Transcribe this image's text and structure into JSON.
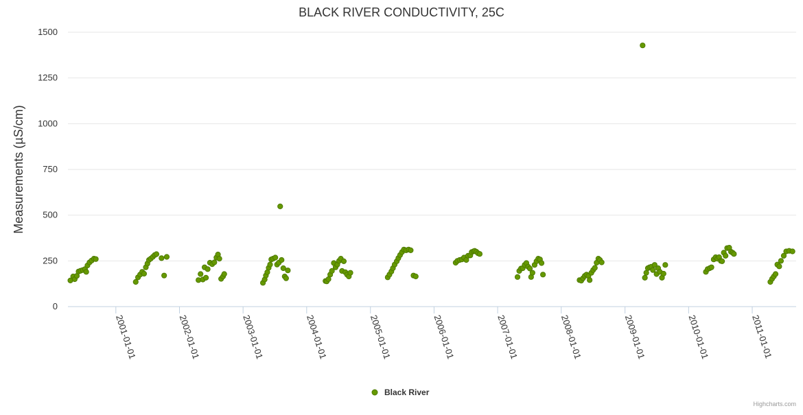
{
  "chart_data": {
    "type": "scatter",
    "title": "BLACK RIVER CONDUCTIVITY, 25C",
    "ylabel": "Measurements (µS/cm)",
    "xlabel": "",
    "ylim": [
      0,
      1500
    ],
    "yticks": [
      0,
      250,
      500,
      750,
      1000,
      1250,
      1500
    ],
    "xlim": [
      "2000-04-01",
      "2011-09-10"
    ],
    "xticks": [
      "2001-01-01",
      "2002-01-01",
      "2003-01-01",
      "2004-01-01",
      "2005-01-01",
      "2006-01-01",
      "2007-01-01",
      "2008-01-01",
      "2009-01-01",
      "2010-01-01",
      "2011-01-01"
    ],
    "grid": "horizontal",
    "legend_position": "bottom-center",
    "marker_color": "#669900",
    "marker_outline": "#4d7a00",
    "credits": "Highcharts.com",
    "series": [
      {
        "name": "Black River",
        "points": [
          [
            "2000-04-15",
            143
          ],
          [
            "2000-05-01",
            165
          ],
          [
            "2000-05-10",
            150
          ],
          [
            "2000-05-22",
            168
          ],
          [
            "2000-06-01",
            192
          ],
          [
            "2000-06-12",
            196
          ],
          [
            "2000-06-25",
            200
          ],
          [
            "2000-07-08",
            205
          ],
          [
            "2000-07-15",
            190
          ],
          [
            "2000-07-22",
            225
          ],
          [
            "2000-08-03",
            242
          ],
          [
            "2000-08-15",
            252
          ],
          [
            "2000-08-28",
            262
          ],
          [
            "2000-09-08",
            260
          ],
          [
            "2001-04-25",
            135
          ],
          [
            "2001-05-08",
            160
          ],
          [
            "2001-05-20",
            175
          ],
          [
            "2001-06-01",
            190
          ],
          [
            "2001-06-12",
            180
          ],
          [
            "2001-06-22",
            215
          ],
          [
            "2001-07-01",
            235
          ],
          [
            "2001-07-10",
            255
          ],
          [
            "2001-07-20",
            262
          ],
          [
            "2001-08-01",
            272
          ],
          [
            "2001-08-12",
            282
          ],
          [
            "2001-08-22",
            287
          ],
          [
            "2001-09-20",
            265
          ],
          [
            "2001-10-05",
            170
          ],
          [
            "2001-10-20",
            272
          ],
          [
            "2002-04-20",
            145
          ],
          [
            "2002-05-02",
            178
          ],
          [
            "2002-05-15",
            148
          ],
          [
            "2002-05-25",
            215
          ],
          [
            "2002-06-02",
            158
          ],
          [
            "2002-06-12",
            205
          ],
          [
            "2002-06-25",
            240
          ],
          [
            "2002-07-08",
            232
          ],
          [
            "2002-07-20",
            242
          ],
          [
            "2002-08-01",
            268
          ],
          [
            "2002-08-10",
            285
          ],
          [
            "2002-08-18",
            262
          ],
          [
            "2002-08-28",
            152
          ],
          [
            "2002-09-08",
            165
          ],
          [
            "2002-09-15",
            178
          ],
          [
            "2003-04-25",
            130
          ],
          [
            "2003-05-05",
            148
          ],
          [
            "2003-05-12",
            170
          ],
          [
            "2003-05-20",
            188
          ],
          [
            "2003-05-28",
            212
          ],
          [
            "2003-06-05",
            230
          ],
          [
            "2003-06-12",
            258
          ],
          [
            "2003-06-22",
            262
          ],
          [
            "2003-07-05",
            268
          ],
          [
            "2003-07-15",
            230
          ],
          [
            "2003-07-25",
            240
          ],
          [
            "2003-08-02",
            548
          ],
          [
            "2003-08-10",
            255
          ],
          [
            "2003-08-20",
            210
          ],
          [
            "2003-08-28",
            165
          ],
          [
            "2003-09-05",
            155
          ],
          [
            "2003-09-15",
            198
          ],
          [
            "2004-04-18",
            140
          ],
          [
            "2004-04-25",
            138
          ],
          [
            "2004-05-05",
            150
          ],
          [
            "2004-05-15",
            175
          ],
          [
            "2004-05-25",
            195
          ],
          [
            "2004-06-05",
            238
          ],
          [
            "2004-06-15",
            215
          ],
          [
            "2004-06-25",
            230
          ],
          [
            "2004-07-05",
            250
          ],
          [
            "2004-07-15",
            262
          ],
          [
            "2004-07-22",
            195
          ],
          [
            "2004-08-01",
            248
          ],
          [
            "2004-08-10",
            188
          ],
          [
            "2004-08-20",
            175
          ],
          [
            "2004-08-30",
            165
          ],
          [
            "2004-09-08",
            185
          ],
          [
            "2005-04-10",
            160
          ],
          [
            "2005-04-20",
            175
          ],
          [
            "2005-05-01",
            192
          ],
          [
            "2005-05-10",
            210
          ],
          [
            "2005-05-20",
            230
          ],
          [
            "2005-06-01",
            248
          ],
          [
            "2005-06-10",
            265
          ],
          [
            "2005-06-20",
            282
          ],
          [
            "2005-07-01",
            298
          ],
          [
            "2005-07-12",
            312
          ],
          [
            "2005-07-25",
            308
          ],
          [
            "2005-08-08",
            312
          ],
          [
            "2005-08-20",
            308
          ],
          [
            "2005-09-05",
            170
          ],
          [
            "2005-09-18",
            165
          ],
          [
            "2006-05-05",
            240
          ],
          [
            "2006-05-15",
            250
          ],
          [
            "2006-05-28",
            255
          ],
          [
            "2006-06-10",
            258
          ],
          [
            "2006-06-22",
            268
          ],
          [
            "2006-07-05",
            255
          ],
          [
            "2006-07-15",
            278
          ],
          [
            "2006-07-28",
            280
          ],
          [
            "2006-08-05",
            298
          ],
          [
            "2006-08-15",
            302
          ],
          [
            "2006-08-22",
            305
          ],
          [
            "2006-09-01",
            300
          ],
          [
            "2006-09-10",
            292
          ],
          [
            "2006-09-20",
            288
          ],
          [
            "2007-04-25",
            162
          ],
          [
            "2007-05-05",
            195
          ],
          [
            "2007-05-15",
            208
          ],
          [
            "2007-05-25",
            210
          ],
          [
            "2007-06-05",
            228
          ],
          [
            "2007-06-15",
            238
          ],
          [
            "2007-06-25",
            218
          ],
          [
            "2007-07-05",
            208
          ],
          [
            "2007-07-12",
            162
          ],
          [
            "2007-07-20",
            185
          ],
          [
            "2007-08-01",
            228
          ],
          [
            "2007-08-12",
            248
          ],
          [
            "2007-08-22",
            262
          ],
          [
            "2007-09-01",
            258
          ],
          [
            "2007-09-10",
            238
          ],
          [
            "2007-09-18",
            175
          ],
          [
            "2008-04-15",
            145
          ],
          [
            "2008-04-25",
            142
          ],
          [
            "2008-05-05",
            155
          ],
          [
            "2008-05-15",
            168
          ],
          [
            "2008-05-25",
            175
          ],
          [
            "2008-06-05",
            168
          ],
          [
            "2008-06-12",
            145
          ],
          [
            "2008-06-22",
            185
          ],
          [
            "2008-07-02",
            200
          ],
          [
            "2008-07-12",
            212
          ],
          [
            "2008-07-22",
            240
          ],
          [
            "2008-08-01",
            262
          ],
          [
            "2008-08-10",
            255
          ],
          [
            "2008-08-20",
            242
          ],
          [
            "2009-04-12",
            1428
          ],
          [
            "2009-04-25",
            158
          ],
          [
            "2009-05-03",
            185
          ],
          [
            "2009-05-12",
            210
          ],
          [
            "2009-05-22",
            215
          ],
          [
            "2009-06-01",
            218
          ],
          [
            "2009-06-10",
            200
          ],
          [
            "2009-06-20",
            228
          ],
          [
            "2009-07-01",
            178
          ],
          [
            "2009-07-10",
            210
          ],
          [
            "2009-07-20",
            190
          ],
          [
            "2009-08-01",
            158
          ],
          [
            "2009-08-10",
            180
          ],
          [
            "2009-08-20",
            228
          ],
          [
            "2010-04-10",
            190
          ],
          [
            "2010-04-20",
            205
          ],
          [
            "2010-05-02",
            210
          ],
          [
            "2010-05-12",
            215
          ],
          [
            "2010-05-25",
            258
          ],
          [
            "2010-06-05",
            270
          ],
          [
            "2010-06-15",
            262
          ],
          [
            "2010-06-25",
            270
          ],
          [
            "2010-07-05",
            250
          ],
          [
            "2010-07-12",
            248
          ],
          [
            "2010-07-22",
            295
          ],
          [
            "2010-08-01",
            278
          ],
          [
            "2010-08-10",
            320
          ],
          [
            "2010-08-22",
            322
          ],
          [
            "2010-09-01",
            300
          ],
          [
            "2010-09-10",
            295
          ],
          [
            "2010-09-18",
            288
          ],
          [
            "2011-04-15",
            135
          ],
          [
            "2011-04-25",
            152
          ],
          [
            "2011-05-05",
            165
          ],
          [
            "2011-05-15",
            178
          ],
          [
            "2011-05-25",
            230
          ],
          [
            "2011-06-05",
            220
          ],
          [
            "2011-06-15",
            250
          ],
          [
            "2011-07-01",
            278
          ],
          [
            "2011-07-15",
            302
          ],
          [
            "2011-08-01",
            305
          ],
          [
            "2011-08-20",
            302
          ]
        ]
      }
    ]
  }
}
